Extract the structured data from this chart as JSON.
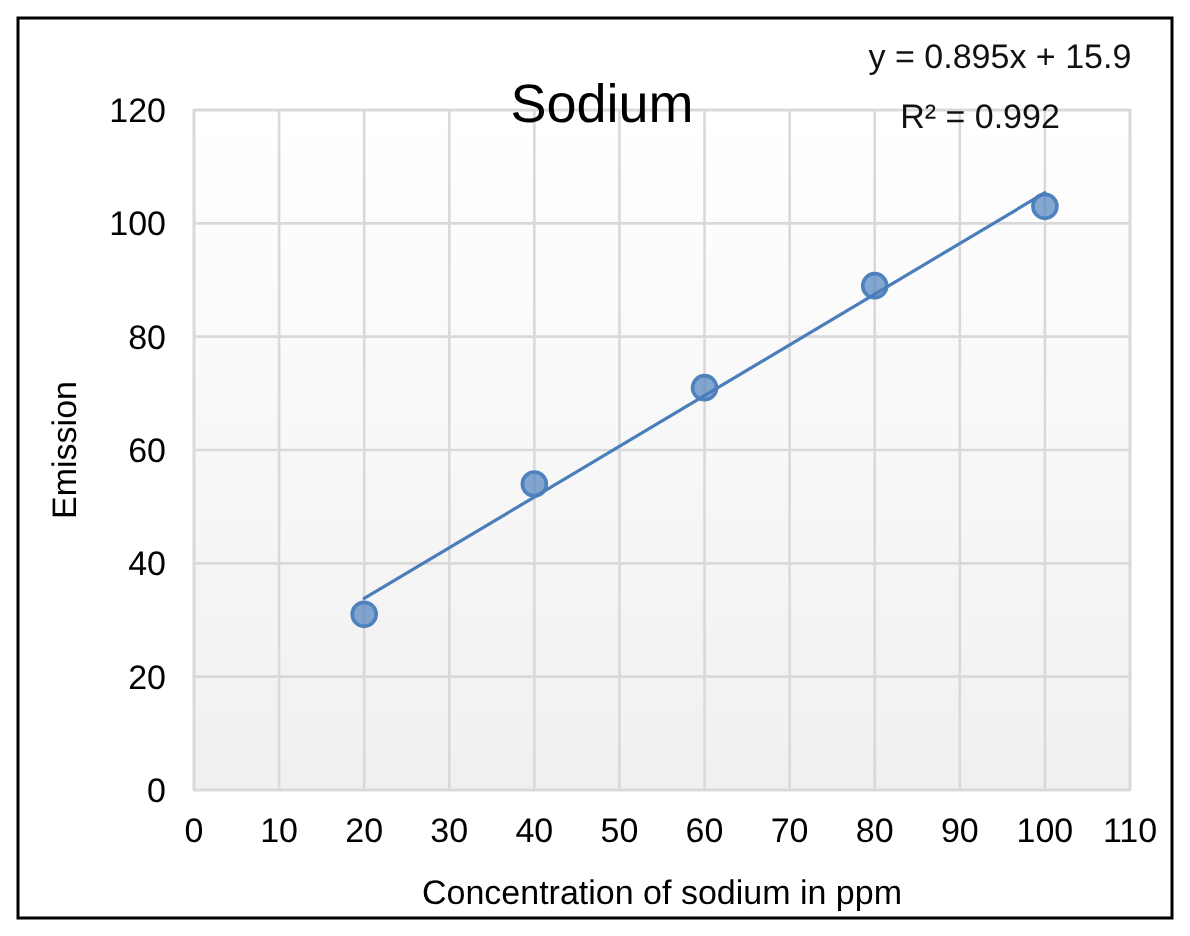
{
  "chart_data": {
    "type": "scatter",
    "title": "Sodium",
    "xlabel": "Concentration of sodium in ppm",
    "ylabel": "Emission",
    "x": [
      20,
      40,
      60,
      80,
      100
    ],
    "series": [
      {
        "color": "#4f81bd",
        "values": [
          31,
          54,
          71,
          89,
          103
        ],
        "marker": "circle"
      },
      {
        "type": "line",
        "color": "#4a7ebb",
        "x": [
          20,
          100
        ],
        "values": [
          33.8,
          105.4
        ],
        "marker": "none",
        "line_style": "solid"
      }
    ],
    "annotations": [
      "y = 0.895x + 15.9",
      "R² = 0.992"
    ],
    "xlim": [
      0,
      110
    ],
    "xticks": [
      0,
      10,
      20,
      30,
      40,
      50,
      60,
      70,
      80,
      90,
      100,
      110
    ],
    "ylim": [
      0,
      120
    ],
    "yticks": [
      0,
      20,
      40,
      60,
      80,
      100,
      120
    ],
    "grid": true
  }
}
